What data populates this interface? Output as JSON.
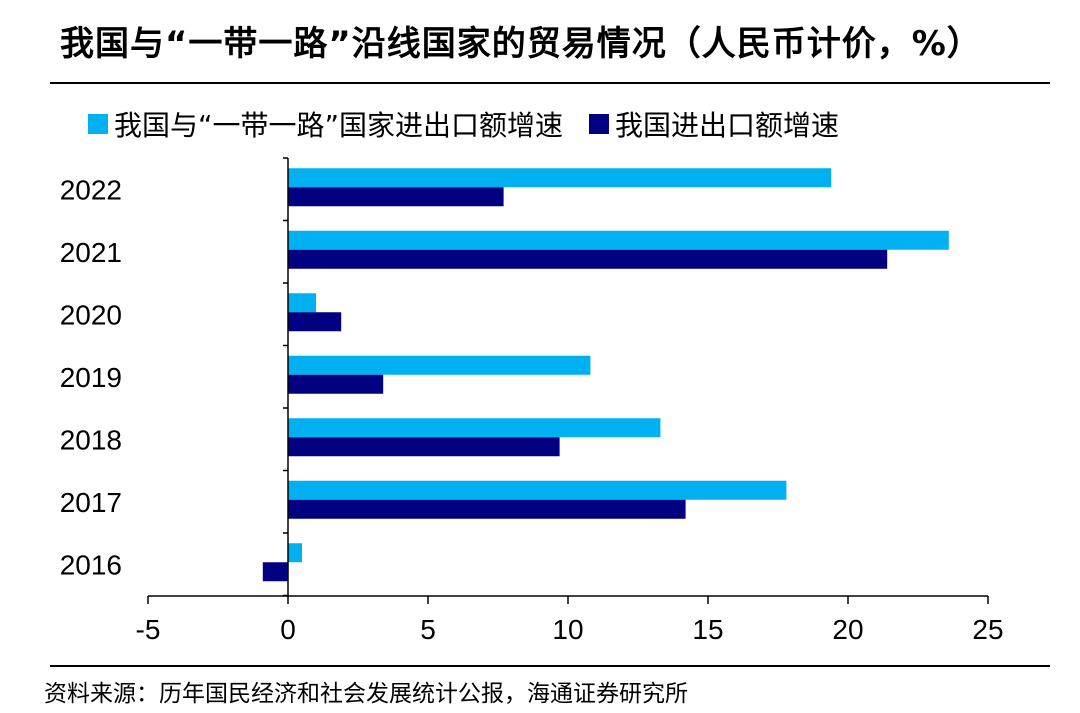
{
  "title": "我国与“一带一路”沿线国家的贸易情况（人民币计价，%）",
  "source": "资料来源：历年国民经济和社会发展统计公报，海通证券研究所",
  "chart_data": {
    "type": "bar",
    "orientation": "horizontal",
    "categories": [
      "2022",
      "2021",
      "2020",
      "2019",
      "2018",
      "2017",
      "2016"
    ],
    "series": [
      {
        "name": "我国与“一带一路”国家进出口额增速",
        "color": "#00B0F0",
        "values": [
          19.4,
          23.6,
          1.0,
          10.8,
          13.3,
          17.8,
          0.5
        ]
      },
      {
        "name": "我国进出口额增速",
        "color": "#000080",
        "values": [
          7.7,
          21.4,
          1.9,
          3.4,
          9.7,
          14.2,
          -0.9
        ]
      }
    ],
    "xlim": [
      -5,
      25
    ],
    "xticks": [
      -5,
      0,
      5,
      10,
      15,
      20,
      25
    ],
    "legend_position": "top",
    "grid": false
  }
}
